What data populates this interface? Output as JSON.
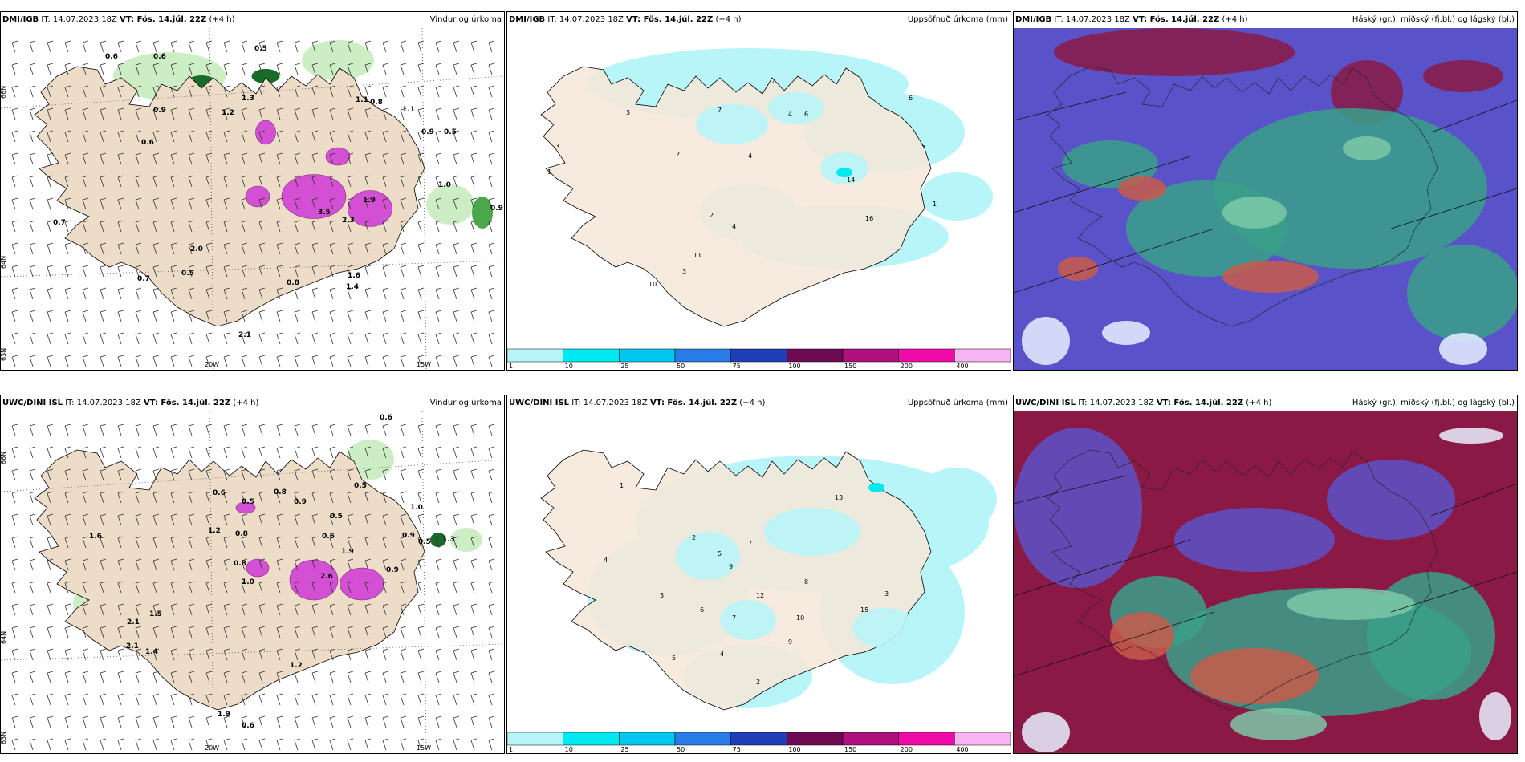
{
  "panels": [
    {
      "model": "DMI/IGB",
      "it": "IT: 14.07.2023 18Z",
      "vt": "VT: Fös. 14.júl. 22Z",
      "lead": "(+4 h)",
      "title": "Vindur og úrkoma"
    },
    {
      "model": "DMI/IGB",
      "it": "IT: 14.07.2023 18Z",
      "vt": "VT: Fös. 14.júl. 22Z",
      "lead": "(+4 h)",
      "title": "Uppsöfnuð úrkoma (mm)"
    },
    {
      "model": "DMI/IGB",
      "it": "IT: 14.07.2023 18Z",
      "vt": "VT: Fös. 14.júl. 22Z",
      "lead": "(+4 h)",
      "title": "Háský (gr.), miðský (fj.bl.) og lágský (bl.)"
    },
    {
      "model": "UWC/DINI ISL",
      "it": "IT: 14.07.2023 18Z",
      "vt": "VT: Fös. 14.júl. 22Z",
      "lead": "(+4 h)",
      "title": "Vindur og úrkoma"
    },
    {
      "model": "UWC/DINI ISL",
      "it": "IT: 14.07.2023 18Z",
      "vt": "VT: Fös. 14.júl. 22Z",
      "lead": "(+4 h)",
      "title": "Uppsöfnuð úrkoma (mm)"
    },
    {
      "model": "UWC/DINI ISL",
      "it": "IT: 14.07.2023 18Z",
      "vt": "VT: Fös. 14.júl. 22Z",
      "lead": "(+4 h)",
      "title": "Háský (gr.), miðský (fj.bl.) og lágský (bl.)"
    }
  ],
  "axis_labels": {
    "lat66": "66N",
    "lat64": "64N",
    "lat63": "63N",
    "lon20": "20W",
    "lon15": "15W"
  },
  "colorbar": {
    "ticks": [
      "1",
      "10",
      "25",
      "50",
      "75",
      "100",
      "150",
      "200",
      "400"
    ],
    "colors": [
      "#b8f5f8",
      "#00e8f0",
      "#00c8f0",
      "#2a7de8",
      "#1f3fb8",
      "#6e0a52",
      "#b0107e",
      "#f00aa8",
      "#f7b4f2"
    ]
  },
  "precip_values_top": [
    "0.6",
    "0.5",
    "0.6",
    "0.9",
    "0.6",
    "1.2",
    "1.3",
    "0.8",
    "1.1",
    "0.9",
    "0.5",
    "1.1",
    "3.5",
    "2.3",
    "1.9",
    "1.0",
    "0.9",
    "0.7",
    "2.0",
    "0.5",
    "0.7",
    "0.8",
    "1.6",
    "1.4",
    "2.1"
  ],
  "precip_values_bottom": [
    "0.6",
    "0.5",
    "0.6",
    "1.6",
    "0.8",
    "0.9",
    "0.5",
    "1.2",
    "0.8",
    "0.5",
    "1.0",
    "0.8",
    "0.6",
    "2.6",
    "0.9",
    "1.5",
    "1.9",
    "0.9",
    "2.1",
    "1.0",
    "0.5",
    "1.3",
    "2.1",
    "1.4",
    "1.2",
    "1.9",
    "0.6"
  ],
  "accum_values_top": [
    "3",
    "1",
    "2",
    "3",
    "7",
    "4",
    "6",
    "4",
    "14",
    "16",
    "4",
    "2",
    "4",
    "11",
    "10",
    "3",
    "6",
    "1",
    "5"
  ],
  "accum_values_bottom": [
    "1",
    "4",
    "2",
    "5",
    "9",
    "7",
    "3",
    "12",
    "10",
    "8",
    "13",
    "3",
    "15",
    "5",
    "6",
    "7",
    "9",
    "2",
    "4"
  ]
}
